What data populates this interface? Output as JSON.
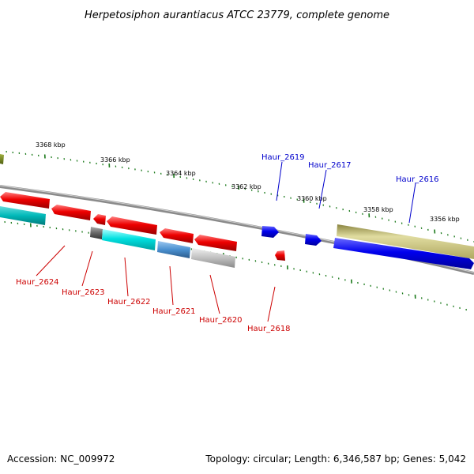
{
  "title": "Herpetosiphon aurantiacus ATCC 23779, complete genome",
  "footer": {
    "accession": "Accession: NC_009972",
    "summary": "Topology: circular; Length: 6,346,587 bp; Genes: 5,042"
  },
  "scale_labels": [
    "3368 kbp",
    "3366 kbp",
    "3364 kbp",
    "3362 kbp",
    "3360 kbp",
    "3358 kbp",
    "3356 kbp"
  ],
  "gene_labels_top": [
    {
      "name": "Haur_2619",
      "color": "#0000cc"
    },
    {
      "name": "Haur_2617",
      "color": "#0000cc"
    },
    {
      "name": "Haur_2616",
      "color": "#0000cc"
    }
  ],
  "gene_labels_bottom": [
    {
      "name": "Haur_2624",
      "color": "#cc0000"
    },
    {
      "name": "Haur_2623",
      "color": "#cc0000"
    },
    {
      "name": "Haur_2622",
      "color": "#cc0000"
    },
    {
      "name": "Haur_2621",
      "color": "#cc0000"
    },
    {
      "name": "Haur_2620",
      "color": "#cc0000"
    },
    {
      "name": "Haur_2618",
      "color": "#cc0000"
    }
  ],
  "colors": {
    "forward_cds": "#0000ee",
    "reverse_cds": "#ee0000",
    "rna": "#00d8d8",
    "other": "#b0b0b0",
    "tick": "#1b7a1b",
    "backbone": "#8a8a8a",
    "khaki": "#c8c080"
  }
}
